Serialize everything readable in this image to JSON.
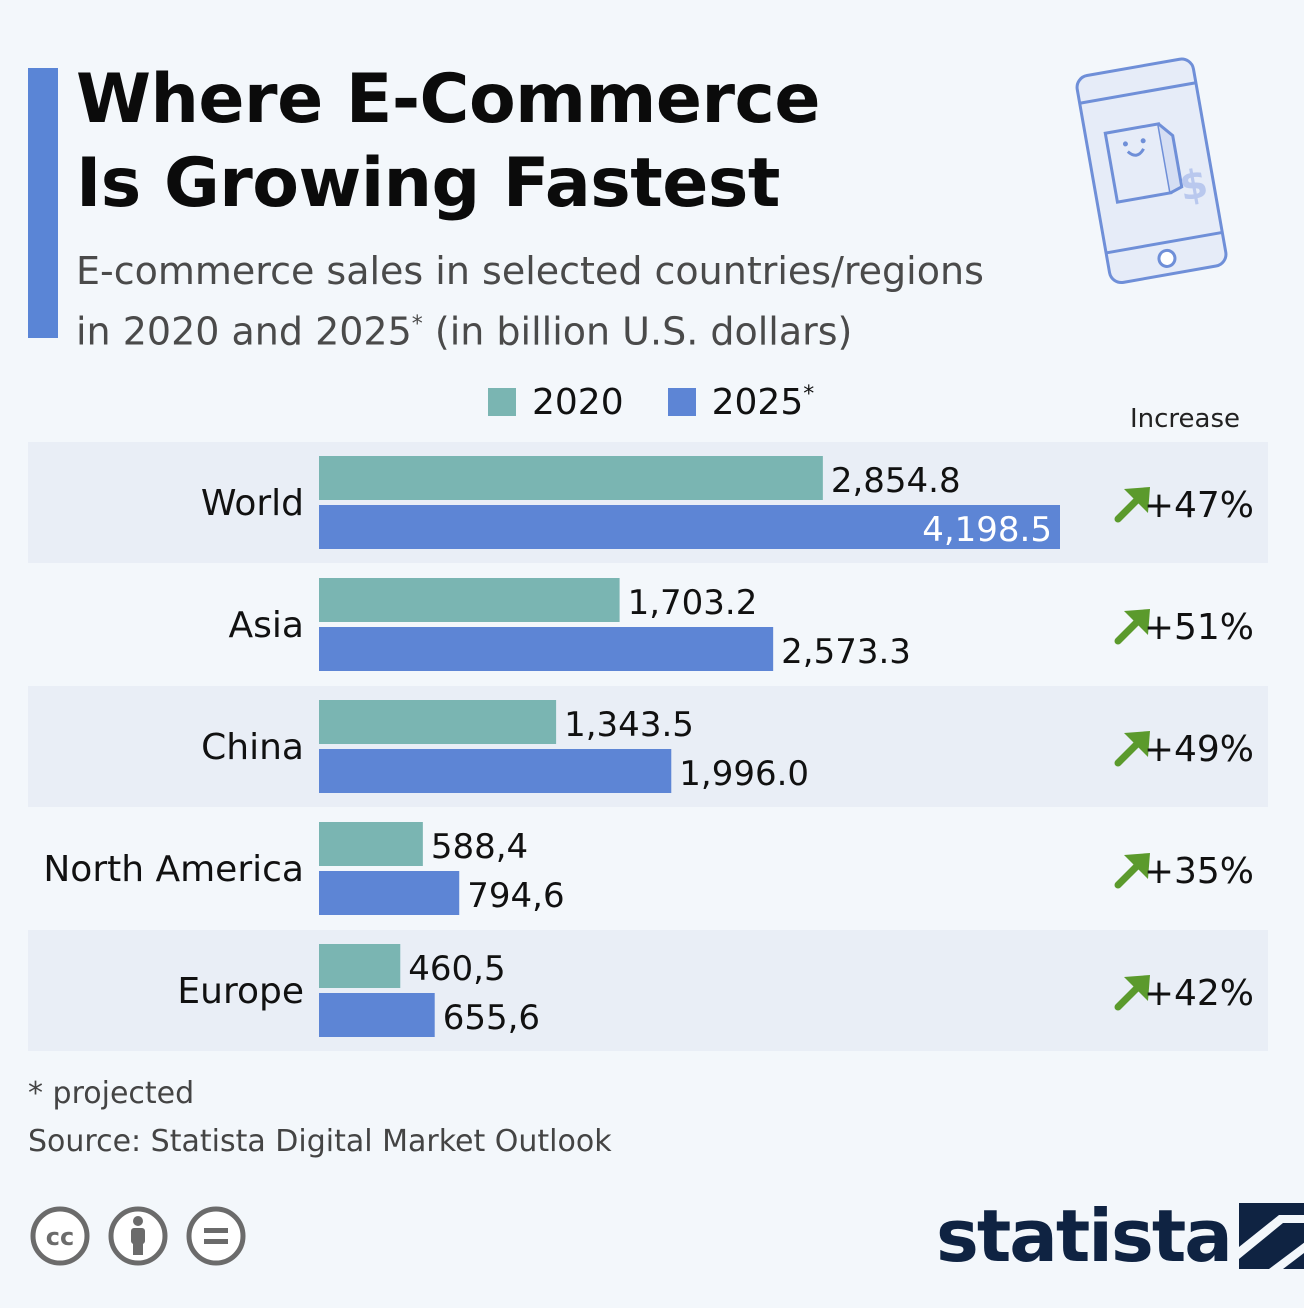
{
  "title": {
    "line1": "Where E-Commerce",
    "line2": "Is Growing Fastest"
  },
  "subtitle": {
    "line1": "E-commerce sales in selected countries/regions",
    "line2_pre": "in 2020 and 2025",
    "line2_sup": "*",
    "line2_post": " (in billion U.S. dollars)"
  },
  "legend": {
    "label_2020": "2020",
    "label_2025": "2025",
    "label_2025_sup": "*"
  },
  "increase_header": "Increase",
  "colors": {
    "series_2020": "#7ab5b2",
    "series_2025": "#5d85d5",
    "arrow": "#5b9a2c",
    "accent": "#5a85d6",
    "band": "#e9eef6"
  },
  "icons": {
    "illustration": "phone-shopping-bag-icon",
    "increase_arrow": "arrow-up-right-icon"
  },
  "chart_data": {
    "type": "bar",
    "orientation": "horizontal",
    "categories": [
      "World",
      "Asia",
      "China",
      "North America",
      "Europe"
    ],
    "series": [
      {
        "name": "2020",
        "values": [
          2854.8,
          1703.2,
          1343.5,
          588.4,
          460.5
        ]
      },
      {
        "name": "2025*",
        "values": [
          4198.5,
          2573.3,
          1996.0,
          794.6,
          655.6
        ]
      }
    ],
    "value_labels": {
      "2020": [
        "2,854.8",
        "1,703.2",
        "1,343.5",
        "588,4",
        "460,5"
      ],
      "2025": [
        "4,198.5",
        "2,573.3",
        "1,996.0",
        "794,6",
        "655,6"
      ]
    },
    "increase": [
      "+47%",
      "+51%",
      "+49%",
      "+35%",
      "+42%"
    ],
    "xlim": [
      0,
      4200
    ]
  },
  "footnote": "* projected",
  "source": "Source: Statista Digital Market Outlook",
  "license_icons": [
    "cc-icon",
    "attribution-icon",
    "no-derivatives-icon"
  ],
  "brand": "statista"
}
